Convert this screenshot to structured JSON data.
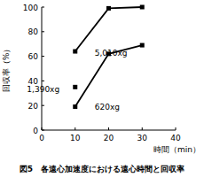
{
  "chart_data": {
    "type": "line",
    "title": "図5　各遠心加速度における遠心時間と回収率",
    "x_label": "時間（min）",
    "y_label": "回収率（%）",
    "x": [
      10,
      20,
      30
    ],
    "series": [
      {
        "name": "5,010xg",
        "color": "#000000",
        "marker": "square",
        "values": [
          64,
          99,
          100
        ]
      },
      {
        "name": "1,390xg",
        "color": "#000000",
        "marker": "square",
        "values": [
          35,
          null,
          null
        ]
      },
      {
        "name": "620xg",
        "color": "#000000",
        "marker": "square",
        "values": [
          19,
          62,
          69
        ]
      }
    ],
    "xlim": [
      0,
      40
    ],
    "xticks": [
      0,
      10,
      20,
      30,
      40
    ],
    "ylim": [
      0,
      100
    ],
    "yticks": [
      0,
      20,
      40,
      60,
      80,
      100
    ],
    "grid": false
  }
}
